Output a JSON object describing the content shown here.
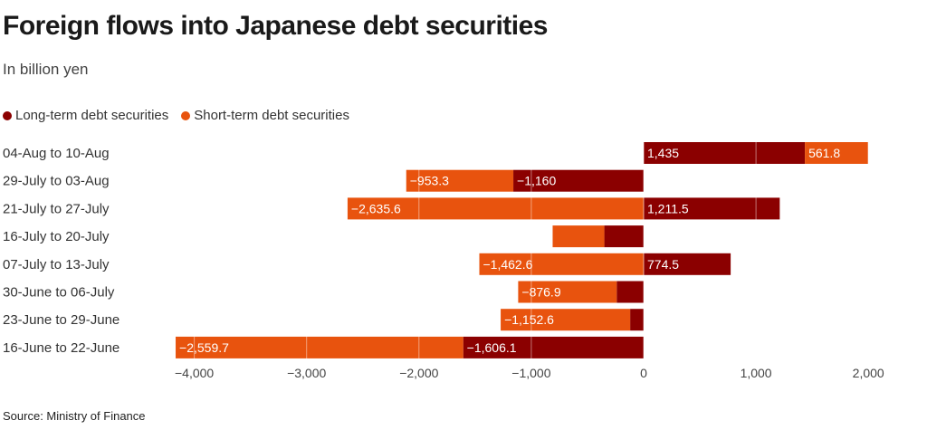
{
  "title": "Foreign flows into Japanese debt securities",
  "subtitle": "In billion yen",
  "source": "Source: Ministry of Finance",
  "legend": [
    {
      "label": "Long-term debt securities",
      "color": "#8b0000"
    },
    {
      "label": "Short-term debt securities",
      "color": "#e8530e"
    }
  ],
  "chart_data": {
    "type": "bar",
    "orientation": "horizontal",
    "stacked": true,
    "categories": [
      "04-Aug to 10-Aug",
      "29-July to 03-Aug",
      "21-July to 27-July",
      "16-July to 20-July",
      "07-July to 13-July",
      "30-June to 06-July",
      "23-June to 29-June",
      "16-June to 22-June"
    ],
    "series": [
      {
        "name": "Long-term debt securities",
        "color": "#8b0000",
        "values": [
          1435,
          -1160,
          1211.5,
          -350,
          774.5,
          -240,
          -120,
          -1606.1
        ],
        "labels": [
          "1,435",
          "−1,160",
          "1,211.5",
          "",
          "774.5",
          "",
          "",
          "−1,606.1"
        ]
      },
      {
        "name": "Short-term debt securities",
        "color": "#e8530e",
        "values": [
          561.8,
          -953.3,
          -2635.6,
          -460,
          -1462.6,
          -876.9,
          -1152.6,
          -2559.7
        ],
        "labels": [
          "561.8",
          "−953.3",
          "−2,635.6",
          "",
          "−1,462.6",
          "−876.9",
          "−1,152.6",
          "−2,559.7"
        ]
      }
    ],
    "xlim": [
      -4200,
      2100
    ],
    "xticks": [
      -4000,
      -3000,
      -2000,
      -1000,
      0,
      1000,
      2000
    ],
    "xtick_labels": [
      "−4,000",
      "−3,000",
      "−2,000",
      "−1,000",
      "0",
      "1,000",
      "2,000"
    ],
    "grid": true
  }
}
